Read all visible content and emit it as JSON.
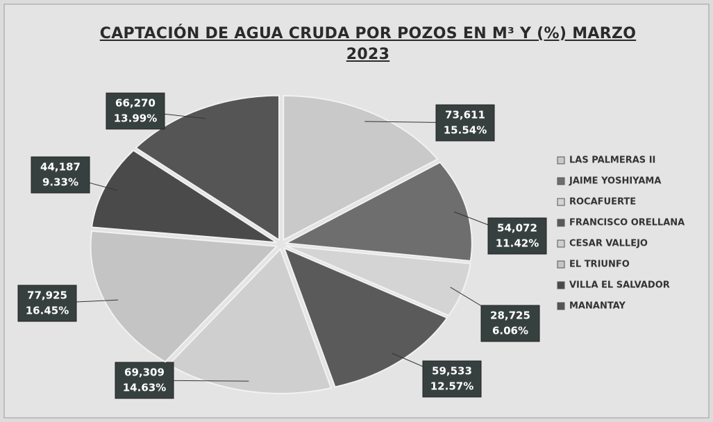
{
  "chart_data": {
    "type": "pie",
    "title": "CAPTACIÓN DE AGUA CRUDA POR POZOS EN M³ Y (%) MARZO 2023",
    "categories": [
      "LAS PALMERAS II",
      "JAIME YOSHIYAMA",
      "ROCAFUERTE",
      "FRANCISCO ORELLANA",
      "CESAR VALLEJO",
      "EL TRIUNFO",
      "VILLA EL SALVADOR",
      "MANANTAY"
    ],
    "values": [
      73611,
      54072,
      28725,
      59533,
      69309,
      77925,
      44187,
      66270
    ],
    "value_labels": [
      "73,611",
      "54,072",
      "28,725",
      "59,533",
      "69,309",
      "77,925",
      "44,187",
      "66,270"
    ],
    "percents": [
      15.54,
      11.42,
      6.06,
      12.57,
      14.63,
      16.45,
      9.33,
      13.99
    ],
    "percent_labels": [
      "15.54%",
      "11.42%",
      "6.06%",
      "12.57%",
      "14.63%",
      "16.45%",
      "9.33%",
      "13.99%"
    ],
    "colors": [
      "#c9c9c9",
      "#6e6e6e",
      "#d4d4d4",
      "#5a5a5a",
      "#cfcfcf",
      "#c4c4c4",
      "#4a4a4a",
      "#555555"
    ],
    "legend": "right"
  }
}
